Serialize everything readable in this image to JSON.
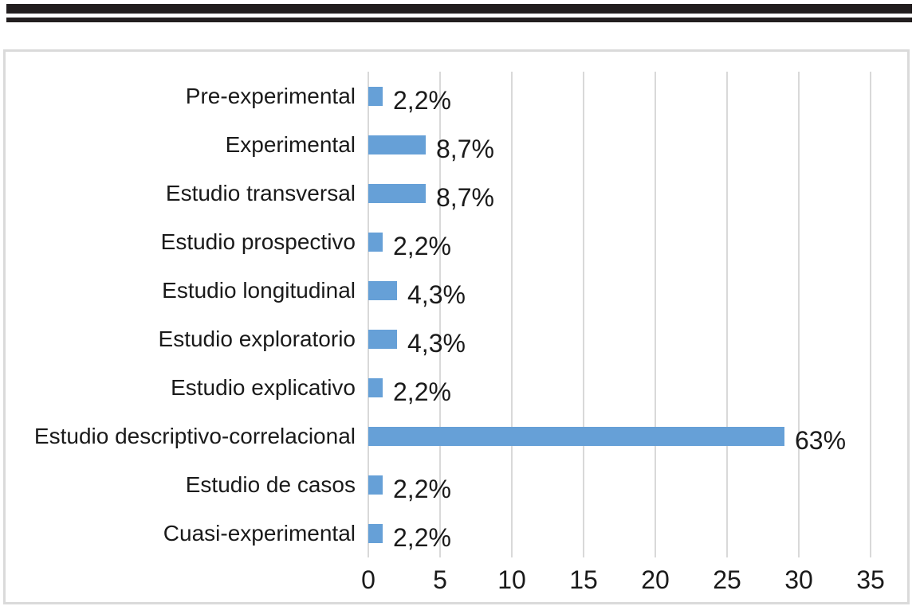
{
  "page": {
    "background": "#FFFFFF",
    "top_rules": {
      "color": "#221E1F"
    }
  },
  "chart_data": {
    "type": "bar",
    "orientation": "horizontal",
    "title": "",
    "xlabel": "",
    "ylabel": "",
    "categories": [
      "Pre-experimental",
      "Experimental",
      "Estudio transversal",
      "Estudio prospectivo",
      "Estudio longitudinal",
      "Estudio exploratorio",
      "Estudio explicativo",
      "Estudio descriptivo-correlacional",
      "Estudio de casos",
      "Cuasi-experimental"
    ],
    "values": [
      1,
      4,
      4,
      1,
      2,
      2,
      1,
      29,
      1,
      1
    ],
    "data_labels": [
      "2,2%",
      "8,7%",
      "8,7%",
      "2,2%",
      "4,3%",
      "4,3%",
      "2,2%",
      "63%",
      "2,2%",
      "2,2%"
    ],
    "x_ticks": [
      "0",
      "5",
      "10",
      "15",
      "20",
      "25",
      "30",
      "35"
    ],
    "xlim": [
      0,
      35
    ],
    "grid": true,
    "legend_position": "none",
    "bar_color": "#66A0D7",
    "gridline_color": "#D9D9D9",
    "frame_color": "#DADADA",
    "text_color": "#1A1A1A"
  }
}
